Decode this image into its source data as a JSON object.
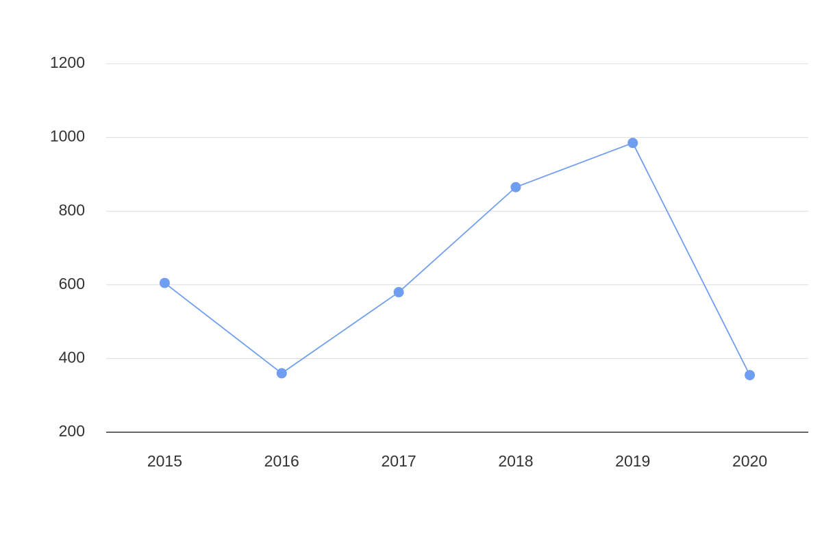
{
  "chart_data": {
    "type": "line",
    "categories": [
      "2015",
      "2016",
      "2017",
      "2018",
      "2019",
      "2020"
    ],
    "series": [
      {
        "color": "#6f9ef0",
        "values": [
          605,
          360,
          580,
          865,
          985,
          355
        ]
      }
    ],
    "ylim": [
      200,
      1200
    ],
    "yticks": [
      200,
      400,
      600,
      800,
      1000,
      1200
    ],
    "grid": true
  }
}
